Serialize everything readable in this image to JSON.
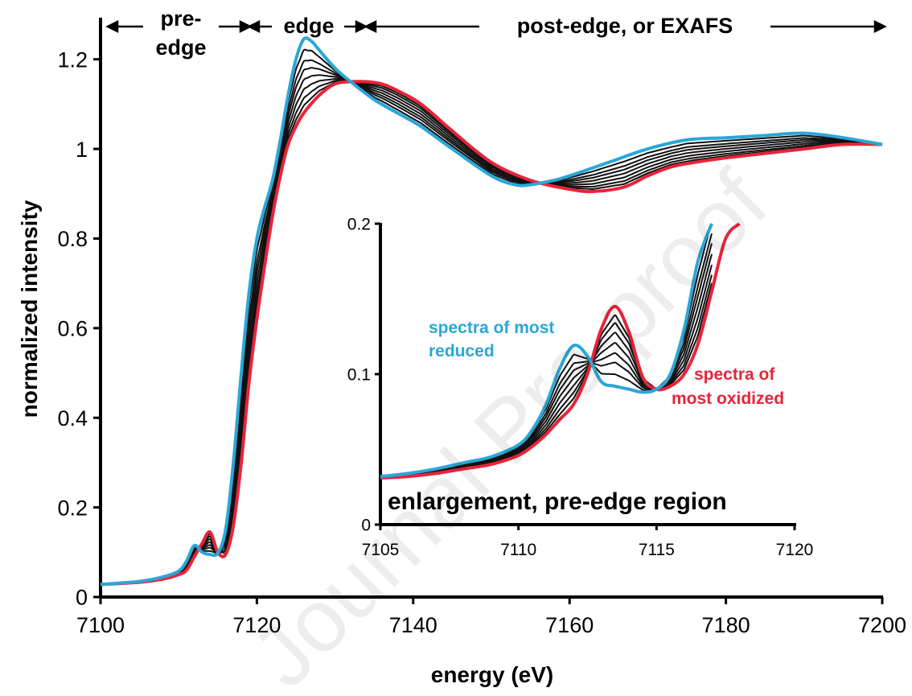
{
  "chart_data": [
    {
      "type": "line",
      "xlabel": "energy (eV)",
      "ylabel": "normalized intensity",
      "xlim": [
        7100,
        7200
      ],
      "ylim": [
        0,
        1.3
      ],
      "xticks": [
        7100,
        7120,
        7140,
        7160,
        7180,
        7200
      ],
      "yticks": [
        0,
        0.2,
        0.4,
        0.6,
        0.8,
        1,
        1.2
      ],
      "ytick_labels": [
        "0",
        "0.2",
        "0.4",
        "0.6",
        "0.8",
        "1",
        "1.2"
      ],
      "region_labels": [
        "pre-",
        "edge",
        "edge",
        "post-edge, or EXAFS"
      ],
      "colors": {
        "reduced": "#2aa7d8",
        "oxidized": "#e8243a",
        "intermediate": "#111111"
      },
      "series": [
        {
          "x": [
            7100,
            7105,
            7108,
            7110,
            7111,
            7112,
            7113,
            7114,
            7115,
            7116,
            7117,
            7118,
            7119,
            7120,
            7121,
            7122,
            7123,
            7124,
            7125,
            7126,
            7127,
            7128,
            7130,
            7132,
            7135,
            7138,
            7141,
            7145,
            7150,
            7153,
            7155,
            7158,
            7160,
            7165,
            7170,
            7175,
            7180,
            7185,
            7190,
            7195,
            7200
          ],
          "y": [
            0.028,
            0.035,
            0.045,
            0.058,
            0.08,
            0.115,
            0.1,
            0.095,
            0.098,
            0.15,
            0.3,
            0.5,
            0.68,
            0.8,
            0.87,
            0.93,
            1.02,
            1.12,
            1.2,
            1.245,
            1.24,
            1.22,
            1.18,
            1.15,
            1.11,
            1.08,
            1.05,
            1.0,
            0.94,
            0.92,
            0.92,
            0.93,
            0.94,
            0.97,
            1.0,
            1.02,
            1.025,
            1.03,
            1.035,
            1.025,
            1.01
          ]
        },
        {
          "name": "spectra of most oxidized",
          "x": [
            7100,
            7105,
            7108,
            7110,
            7111,
            7112,
            7113,
            7114,
            7115,
            7116,
            7117,
            7118,
            7119,
            7120,
            7121,
            7122,
            7123,
            7124,
            7125,
            7126,
            7128,
            7130,
            7132,
            7134,
            7136,
            7138,
            7141,
            7145,
            7150,
            7155,
            7160,
            7163,
            7167,
            7170,
            7173,
            7176,
            7180,
            7185,
            7190,
            7195,
            7200
          ],
          "y": [
            0.028,
            0.033,
            0.04,
            0.05,
            0.06,
            0.09,
            0.12,
            0.145,
            0.1,
            0.095,
            0.16,
            0.3,
            0.48,
            0.62,
            0.74,
            0.85,
            0.94,
            1.01,
            1.05,
            1.08,
            1.12,
            1.145,
            1.15,
            1.15,
            1.145,
            1.13,
            1.1,
            1.04,
            0.97,
            0.93,
            0.91,
            0.905,
            0.915,
            0.94,
            0.96,
            0.97,
            0.98,
            0.99,
            1.0,
            1.01,
            1.01
          ]
        }
      ]
    },
    {
      "type": "line",
      "title": "enlargement, pre-edge region",
      "xlim": [
        7105,
        7120
      ],
      "ylim": [
        0,
        0.2
      ],
      "xticks": [
        7105,
        7110,
        7115,
        7120
      ],
      "yticks": [
        0,
        0.1,
        0.2
      ],
      "annotations": [
        {
          "text_lines": [
            "spectra of most",
            "reduced"
          ],
          "color": "#2aa7d8"
        },
        {
          "text_lines": [
            "spectra of",
            "most oxidized"
          ],
          "color": "#e8243a"
        }
      ],
      "series": [
        {
          "x": [
            7105,
            7106,
            7107,
            7108,
            7109,
            7110,
            7110.5,
            7111,
            7111.5,
            7112,
            7112.5,
            7113,
            7113.5,
            7114,
            7114.5,
            7115,
            7115.5,
            7116,
            7116.5,
            7117
          ],
          "y": [
            0.032,
            0.034,
            0.037,
            0.041,
            0.045,
            0.053,
            0.063,
            0.08,
            0.104,
            0.119,
            0.112,
            0.095,
            0.092,
            0.09,
            0.088,
            0.09,
            0.1,
            0.13,
            0.175,
            0.21
          ]
        },
        {
          "x": [
            7105,
            7106,
            7107,
            7108,
            7109,
            7110,
            7110.5,
            7111,
            7111.5,
            7112,
            7112.5,
            7113,
            7113.5,
            7114,
            7114.5,
            7115,
            7115.5,
            7116,
            7116.5,
            7117,
            7117.5,
            7118
          ],
          "y": [
            0.031,
            0.032,
            0.034,
            0.037,
            0.04,
            0.046,
            0.052,
            0.06,
            0.07,
            0.08,
            0.1,
            0.13,
            0.145,
            0.128,
            0.098,
            0.09,
            0.092,
            0.1,
            0.12,
            0.155,
            0.19,
            0.22
          ]
        }
      ]
    }
  ],
  "watermark": "Journal Pre-proof"
}
